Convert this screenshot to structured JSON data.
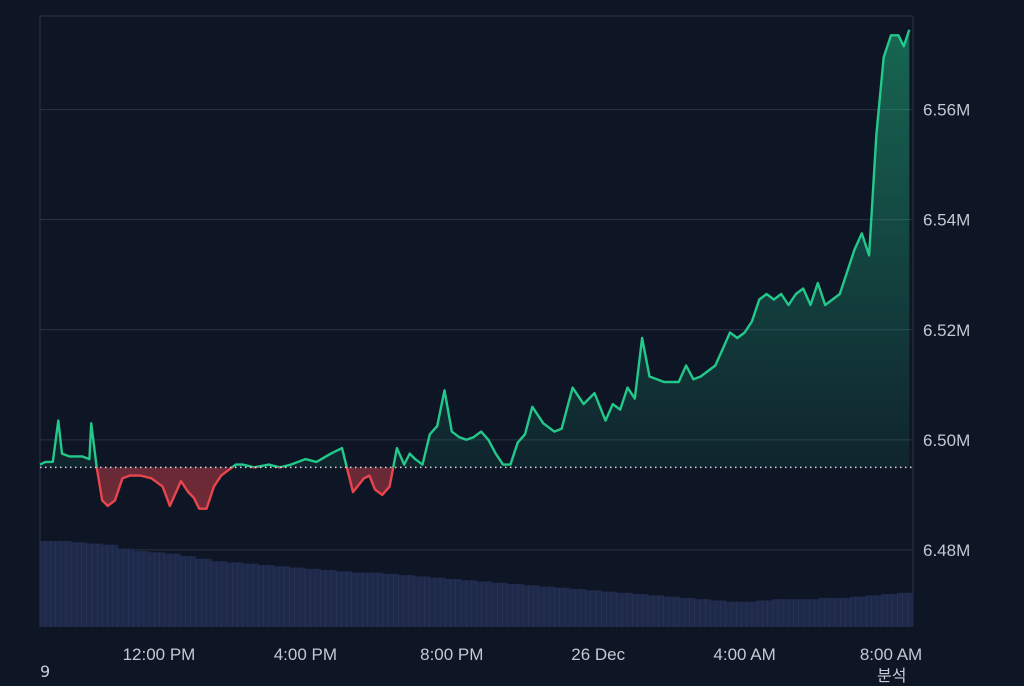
{
  "chart_data": {
    "type": "line",
    "baseline": 6.495,
    "ylim": [
      6.466,
      6.577
    ],
    "y_ticks": [
      {
        "value": 6.48,
        "label": "6.48M"
      },
      {
        "value": 6.5,
        "label": "6.50M"
      },
      {
        "value": 6.52,
        "label": "6.52M"
      },
      {
        "value": 6.54,
        "label": "6.54M"
      },
      {
        "value": 6.56,
        "label": "6.56M"
      }
    ],
    "xlim": [
      8.75,
      32.6
    ],
    "x_ticks": [
      {
        "value": 12,
        "label": "12:00 PM"
      },
      {
        "value": 16,
        "label": "4:00 PM"
      },
      {
        "value": 20,
        "label": "8:00 PM"
      },
      {
        "value": 24,
        "label": "26 Dec"
      },
      {
        "value": 28,
        "label": "4:00 AM"
      },
      {
        "value": 32,
        "label": "8:00 AM"
      }
    ],
    "series": [
      {
        "x": [
          8.75,
          8.9,
          9.1,
          9.25,
          9.35,
          9.55,
          9.9,
          10.1,
          10.15,
          10.3,
          10.45,
          10.6,
          10.8,
          11.0,
          11.2,
          11.5,
          11.8,
          12.1,
          12.3,
          12.5,
          12.6,
          12.8,
          12.95,
          13.1,
          13.3,
          13.5,
          13.7,
          13.9,
          14.1,
          14.3,
          14.6,
          15.0,
          15.3,
          15.6,
          15.8,
          16.0,
          16.3,
          16.7,
          17.0,
          17.3,
          17.6,
          17.75,
          17.9,
          18.1,
          18.3,
          18.5,
          18.7,
          18.85,
          19.0,
          19.2,
          19.4,
          19.6,
          19.8,
          20.0,
          20.2,
          20.4,
          20.6,
          20.8,
          21.0,
          21.2,
          21.4,
          21.6,
          21.8,
          22.0,
          22.2,
          22.5,
          22.8,
          23.0,
          23.3,
          23.6,
          23.9,
          24.2,
          24.4,
          24.6,
          24.8,
          25.0,
          25.2,
          25.4,
          25.6,
          25.8,
          26.0,
          26.2,
          26.4,
          26.6,
          26.8,
          27.0,
          27.2,
          27.4,
          27.6,
          27.8,
          28.0,
          28.2,
          28.4,
          28.6,
          28.8,
          29.0,
          29.2,
          29.4,
          29.6,
          29.8,
          30.0,
          30.2,
          30.4,
          30.6,
          30.8,
          31.0,
          31.2,
          31.4,
          31.6,
          31.8,
          32.0,
          32.2,
          32.35,
          32.5
        ],
        "y": [
          6.4955,
          6.496,
          6.496,
          6.5035,
          6.4975,
          6.497,
          6.497,
          6.4965,
          6.503,
          6.495,
          6.489,
          6.488,
          6.489,
          6.493,
          6.4935,
          6.4935,
          6.493,
          6.4915,
          6.488,
          6.491,
          6.4925,
          6.4905,
          6.4895,
          6.4875,
          6.4875,
          6.4915,
          6.4935,
          6.4945,
          6.4955,
          6.4955,
          6.495,
          6.4955,
          6.495,
          6.4955,
          6.496,
          6.4965,
          6.496,
          6.4975,
          6.4985,
          6.4905,
          6.493,
          6.4935,
          6.491,
          6.49,
          6.4915,
          6.4985,
          6.4955,
          6.4975,
          6.4965,
          6.4955,
          6.501,
          6.5025,
          6.509,
          6.5015,
          6.5005,
          6.5,
          6.5005,
          6.5015,
          6.5,
          6.4975,
          6.4955,
          6.4955,
          6.4995,
          6.501,
          6.506,
          6.503,
          6.5015,
          6.502,
          6.5095,
          6.5065,
          6.5085,
          6.5035,
          6.5065,
          6.5055,
          6.5095,
          6.5075,
          6.5185,
          6.5115,
          6.511,
          6.5105,
          6.5105,
          6.5105,
          6.5135,
          6.511,
          6.5115,
          6.5125,
          6.5135,
          6.5165,
          6.5195,
          6.5185,
          6.5195,
          6.5215,
          6.5255,
          6.5265,
          6.5255,
          6.5265,
          6.5245,
          6.5265,
          6.5275,
          6.5245,
          6.5285,
          6.5245,
          6.5255,
          6.5265,
          6.5305,
          6.5345,
          6.5375,
          6.5335,
          6.5555,
          6.5695,
          6.5735,
          6.5735,
          6.5715,
          6.5745
        ]
      }
    ],
    "up_color": "#22c98a",
    "down_color": "#e8454d",
    "volume": {
      "values": [
        6.8,
        6.8,
        6.7,
        6.6,
        6.5,
        6.2,
        6.0,
        5.9,
        5.8,
        5.6,
        5.4,
        5.2,
        5.1,
        5.0,
        4.9,
        4.8,
        4.7,
        4.6,
        4.5,
        4.4,
        4.3,
        4.3,
        4.2,
        4.1,
        4.0,
        3.9,
        3.8,
        3.7,
        3.6,
        3.5,
        3.4,
        3.3,
        3.2,
        3.1,
        3.0,
        2.9,
        2.8,
        2.7,
        2.6,
        2.5,
        2.4,
        2.3,
        2.2,
        2.1,
        2.0,
        2.0,
        2.1,
        2.2,
        2.2,
        2.2,
        2.3,
        2.3,
        2.4,
        2.5,
        2.6,
        2.7
      ]
    }
  },
  "footer": {
    "left_label": "9",
    "right_label": "분석"
  }
}
